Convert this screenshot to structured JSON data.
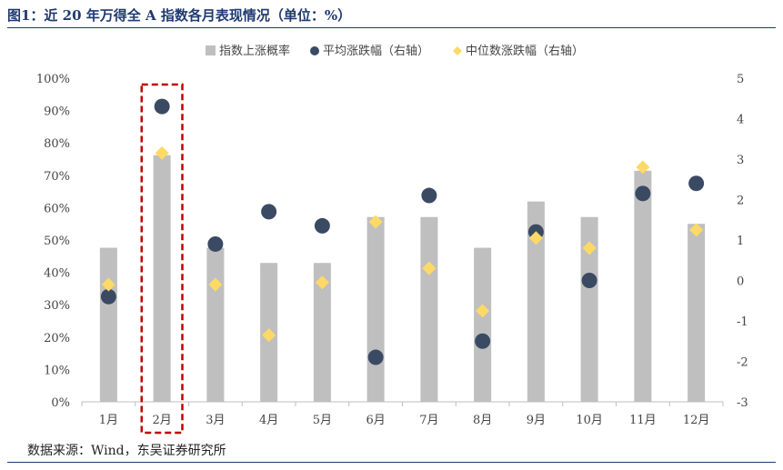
{
  "title": "图1：近 20 年万得全 A 指数各月表现情况（单位：%）",
  "source": "数据来源：Wind，东吴证券研究所",
  "chart_data": {
    "type": "bar",
    "categories": [
      "1月",
      "2月",
      "3月",
      "4月",
      "5月",
      "6月",
      "7月",
      "8月",
      "9月",
      "10月",
      "11月",
      "12月"
    ],
    "series": [
      {
        "name": "指数上涨概率",
        "type": "bar",
        "axis": "left",
        "color": "#bfbfbf",
        "values": [
          47.6,
          76.2,
          47.6,
          42.9,
          42.9,
          57.1,
          57.1,
          47.6,
          61.9,
          57.1,
          71.4,
          55.0
        ]
      },
      {
        "name": "平均涨跌幅（右轴）",
        "type": "scatter",
        "marker": "circle",
        "axis": "right",
        "color": "#3b4a63",
        "values": [
          -0.4,
          4.3,
          0.9,
          1.7,
          1.35,
          -1.9,
          2.1,
          -1.5,
          1.2,
          0.0,
          2.15,
          2.4
        ]
      },
      {
        "name": "中位数涨跌幅（右轴）",
        "type": "scatter",
        "marker": "diamond",
        "axis": "right",
        "color": "#ffd966",
        "values": [
          -0.1,
          3.15,
          -0.1,
          -1.35,
          -0.05,
          1.45,
          0.3,
          -0.75,
          1.05,
          0.8,
          2.8,
          1.25
        ]
      }
    ],
    "ylim_left": [
      0,
      100
    ],
    "yticks_left": [
      "0%",
      "10%",
      "20%",
      "30%",
      "40%",
      "50%",
      "60%",
      "70%",
      "80%",
      "90%",
      "100%"
    ],
    "ylim_right": [
      -3,
      5
    ],
    "yticks_right": [
      "-3",
      "-2",
      "-1",
      "0",
      "1",
      "2",
      "3",
      "4",
      "5"
    ],
    "legend_position": "top",
    "highlight_category": "2月",
    "highlight_color": "#c00000",
    "grid": false
  }
}
